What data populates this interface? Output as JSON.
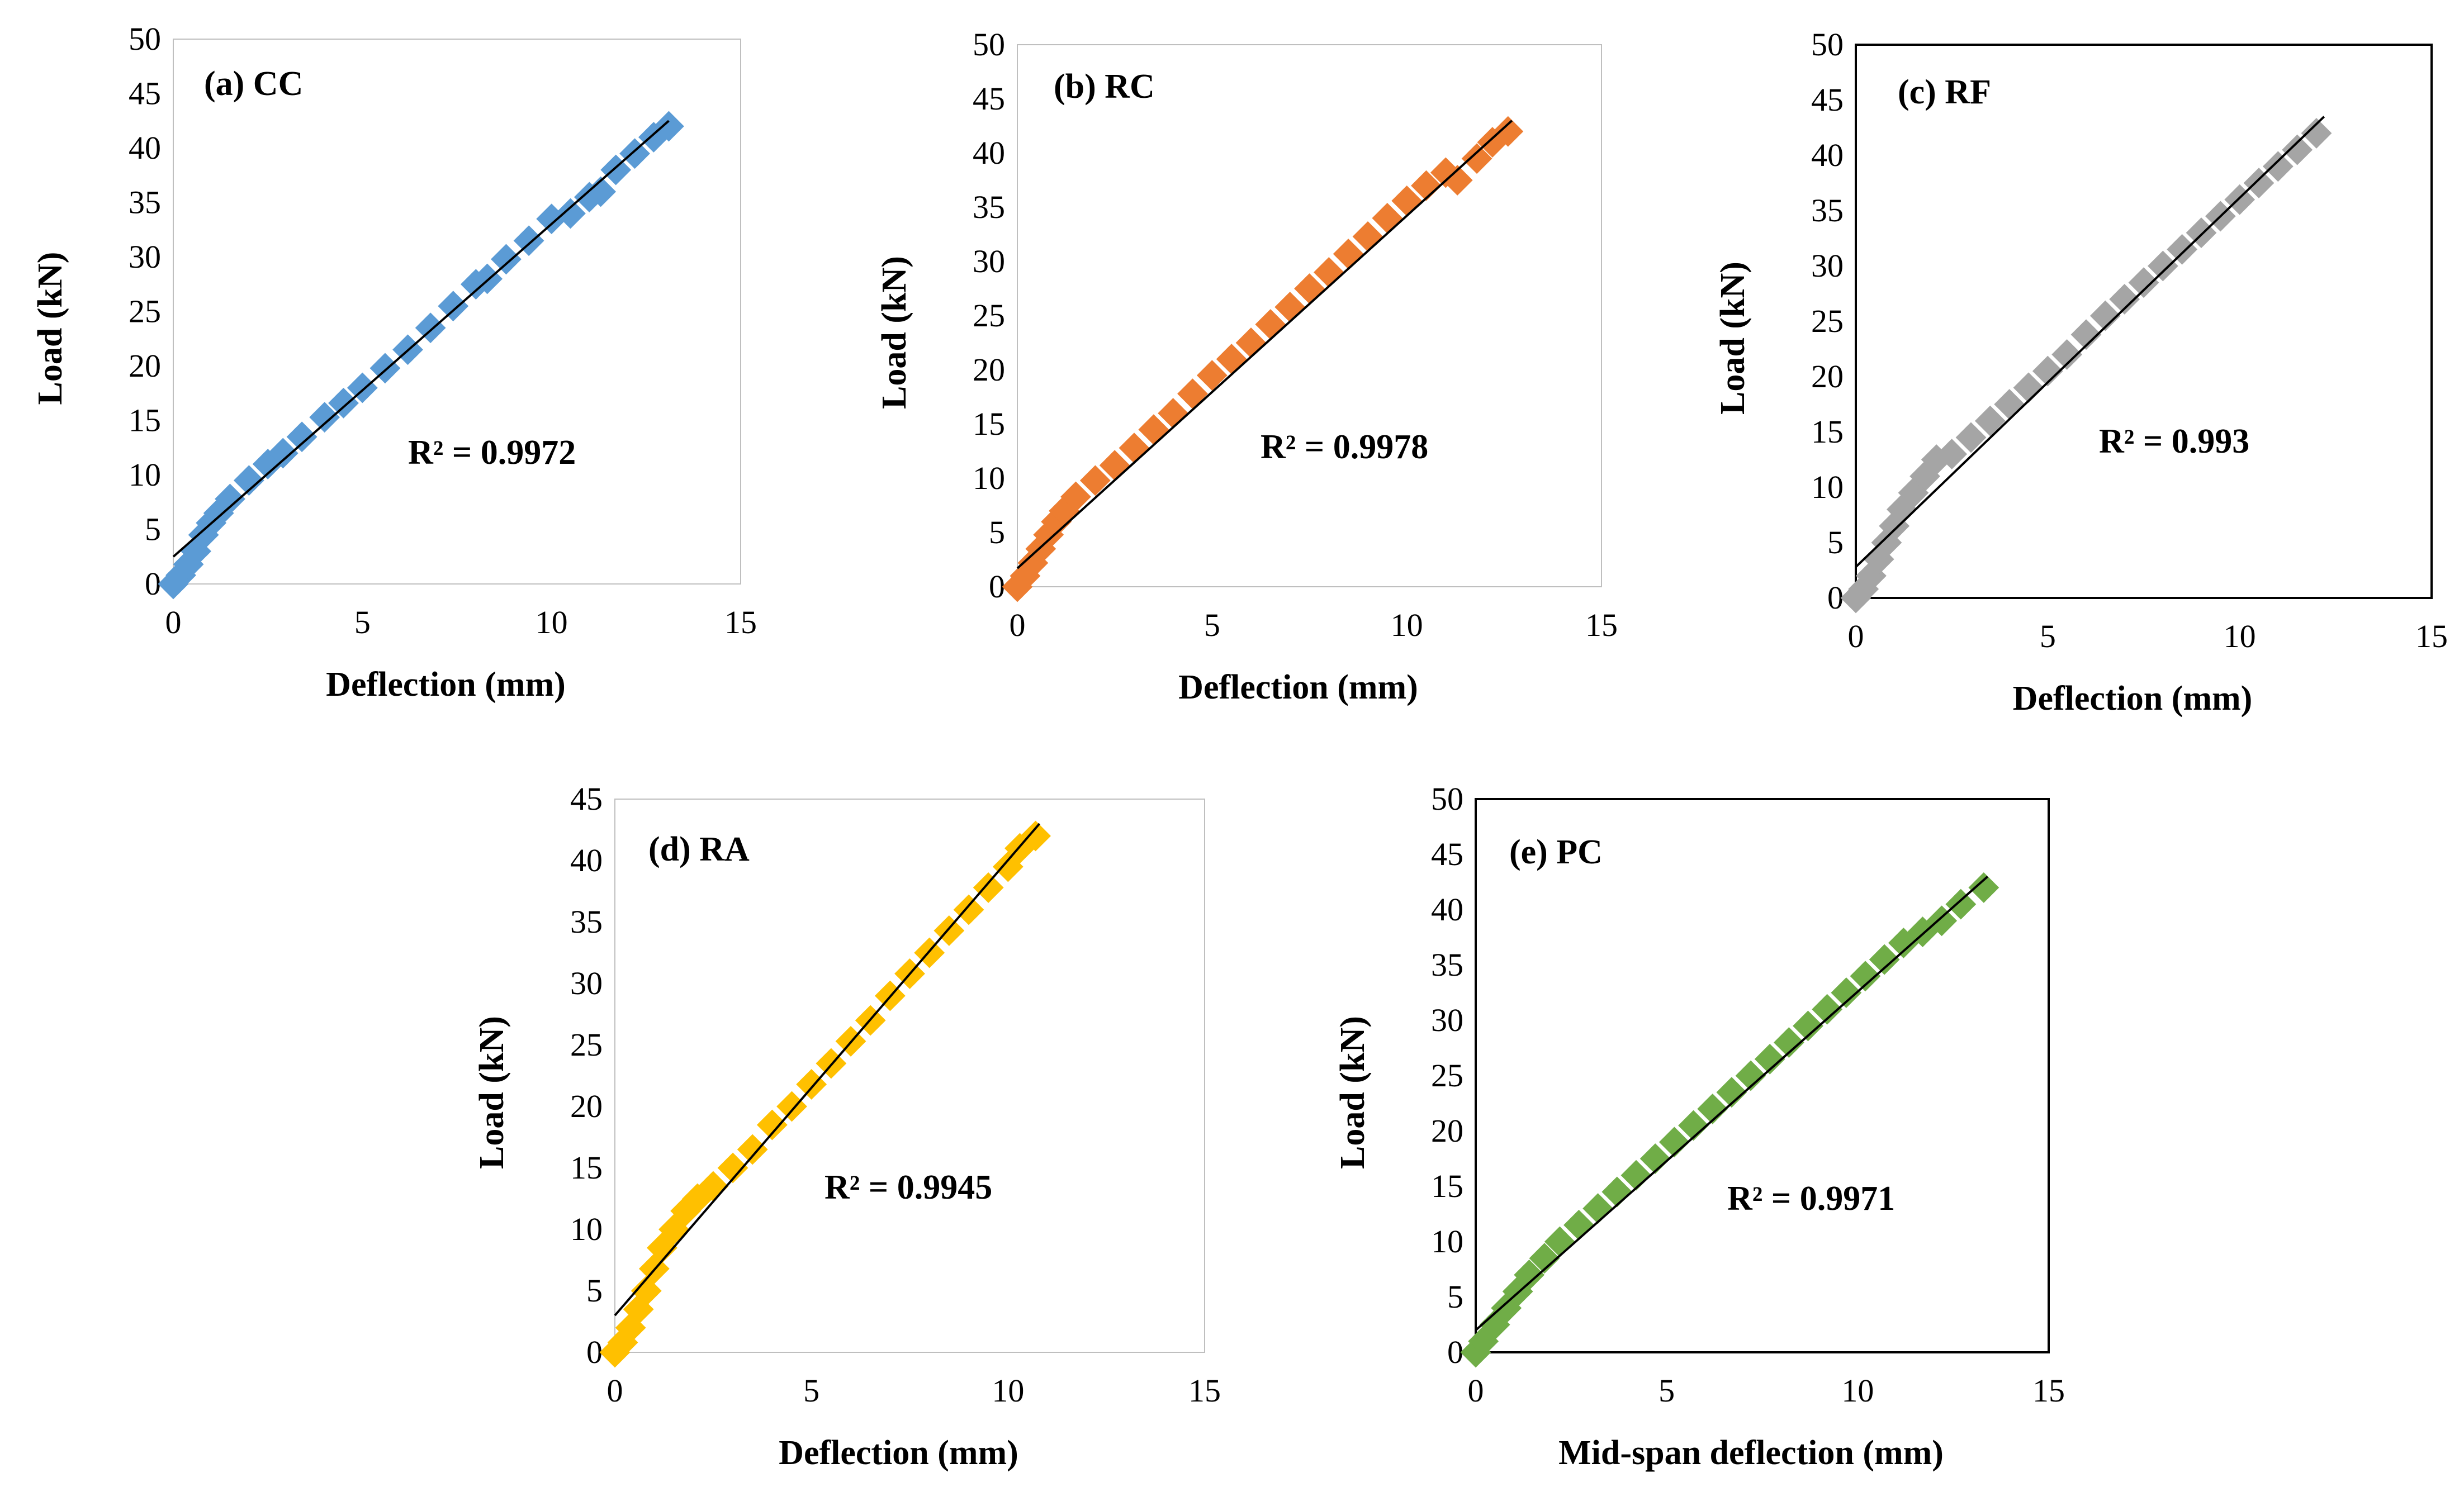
{
  "chart_data": [
    {
      "type": "scatter",
      "panel_label": "(a) CC",
      "xlabel": "Deflection (mm)",
      "ylabel": "Load (kN)",
      "xlim": [
        0,
        15
      ],
      "ylim": [
        0,
        50
      ],
      "xticks": [
        0,
        5,
        10,
        15
      ],
      "yticks": [
        0,
        5,
        10,
        15,
        20,
        25,
        30,
        35,
        40,
        45,
        50
      ],
      "r2_label": "R² = 0.9972",
      "color": "#5b9bd5",
      "trendline": {
        "x": [
          0,
          13.1
        ],
        "y": [
          2.5,
          42.5
        ]
      },
      "series": [
        {
          "name": "CC",
          "x": [
            0,
            0.2,
            0.4,
            0.6,
            0.8,
            1.0,
            1.2,
            1.5,
            2.0,
            2.5,
            2.9,
            3.4,
            4.0,
            4.5,
            5.0,
            5.6,
            6.2,
            6.8,
            7.4,
            8.0,
            8.3,
            8.8,
            9.4,
            10.0,
            10.5,
            11.0,
            11.3,
            11.7,
            12.2,
            12.7,
            13.1
          ],
          "y": [
            0,
            0.8,
            1.8,
            3.0,
            4.5,
            5.6,
            6.5,
            7.8,
            9.5,
            11.0,
            12.0,
            13.5,
            15.3,
            16.6,
            18.0,
            19.8,
            21.5,
            23.5,
            25.5,
            27.5,
            28.0,
            29.8,
            31.5,
            33.5,
            34.0,
            35.5,
            36.0,
            38.0,
            39.5,
            41.0,
            42.0
          ]
        }
      ]
    },
    {
      "type": "scatter",
      "panel_label": "(b) RC",
      "xlabel": "Deflection (mm)",
      "ylabel": "Load (kN)",
      "xlim": [
        0,
        15
      ],
      "ylim": [
        0,
        50
      ],
      "xticks": [
        0,
        5,
        10,
        15
      ],
      "yticks": [
        0,
        5,
        10,
        15,
        20,
        25,
        30,
        35,
        40,
        45,
        50
      ],
      "r2_label": "R² = 0.9978",
      "color": "#ed7d31",
      "trendline": {
        "x": [
          0,
          12.7
        ],
        "y": [
          1.7,
          43.0
        ]
      },
      "series": [
        {
          "name": "RC",
          "x": [
            0,
            0.2,
            0.4,
            0.6,
            0.8,
            1.0,
            1.2,
            1.5,
            2.0,
            2.5,
            3.0,
            3.5,
            4.0,
            4.5,
            5.0,
            5.5,
            6.0,
            6.5,
            7.0,
            7.5,
            8.0,
            8.5,
            9.0,
            9.5,
            10.0,
            10.5,
            11.0,
            11.3,
            11.8,
            12.2,
            12.6
          ],
          "y": [
            0,
            1.0,
            2.2,
            3.5,
            4.8,
            6.0,
            7.0,
            8.3,
            9.8,
            11.2,
            12.8,
            14.5,
            16.0,
            17.8,
            19.5,
            21.0,
            22.5,
            24.2,
            25.8,
            27.5,
            29.0,
            30.7,
            32.3,
            34.0,
            35.6,
            37.0,
            38.2,
            37.5,
            39.5,
            41.0,
            42.0
          ]
        }
      ]
    },
    {
      "type": "scatter",
      "panel_label": "(c) RF",
      "xlabel": "Deflection (mm)",
      "ylabel": "Load (kN)",
      "xlim": [
        0,
        15
      ],
      "ylim": [
        0,
        50
      ],
      "xticks": [
        0,
        5,
        10,
        15
      ],
      "yticks": [
        0,
        5,
        10,
        15,
        20,
        25,
        30,
        35,
        40,
        45,
        50
      ],
      "r2_label": "R² = 0.993",
      "color": "#a5a5a5",
      "trendline": {
        "x": [
          0,
          12.2
        ],
        "y": [
          2.8,
          43.5
        ]
      },
      "series": [
        {
          "name": "RF",
          "x": [
            0,
            0.2,
            0.4,
            0.6,
            0.8,
            1.0,
            1.2,
            1.5,
            1.8,
            2.1,
            2.5,
            3.0,
            3.5,
            4.0,
            4.5,
            5.0,
            5.5,
            6.0,
            6.5,
            7.0,
            7.5,
            8.0,
            8.5,
            9.0,
            9.5,
            10.0,
            10.5,
            11.0,
            11.5,
            12.0
          ],
          "y": [
            0,
            0.8,
            2.0,
            3.5,
            5.0,
            6.5,
            8.0,
            9.5,
            11.0,
            12.5,
            13.0,
            14.5,
            16.0,
            17.5,
            19.0,
            20.5,
            22.0,
            23.8,
            25.5,
            27.0,
            28.5,
            30.0,
            31.5,
            33.0,
            34.5,
            36.0,
            37.5,
            39.0,
            40.5,
            42.0
          ]
        }
      ]
    },
    {
      "type": "scatter",
      "panel_label": "(d) RA",
      "xlabel": "Deflection (mm)",
      "ylabel": "Load (kN)",
      "xlim": [
        0,
        15
      ],
      "ylim": [
        0,
        45
      ],
      "xticks": [
        0,
        5,
        10,
        15
      ],
      "yticks": [
        0,
        5,
        10,
        15,
        20,
        25,
        30,
        35,
        40,
        45
      ],
      "r2_label": "R² = 0.9945",
      "color": "#ffc000",
      "trendline": {
        "x": [
          0,
          10.8
        ],
        "y": [
          3.0,
          43.0
        ]
      },
      "series": [
        {
          "name": "RA",
          "x": [
            0,
            0.2,
            0.4,
            0.6,
            0.8,
            1.0,
            1.2,
            1.5,
            1.8,
            2.1,
            2.5,
            3.0,
            3.5,
            4.0,
            4.5,
            5.0,
            5.5,
            6.0,
            6.5,
            7.0,
            7.5,
            8.0,
            8.5,
            9.0,
            9.5,
            10.0,
            10.3,
            10.7
          ],
          "y": [
            0,
            0.8,
            2.0,
            3.5,
            5.0,
            6.8,
            8.5,
            10.0,
            11.5,
            12.5,
            13.5,
            15.0,
            16.5,
            18.5,
            20.0,
            21.8,
            23.5,
            25.3,
            27.0,
            29.0,
            30.8,
            32.5,
            34.3,
            36.0,
            37.8,
            39.5,
            41.0,
            42.0
          ]
        }
      ]
    },
    {
      "type": "scatter",
      "panel_label": "(e) PC",
      "xlabel": "Mid-span deflection (mm)",
      "ylabel": "Load (kN)",
      "xlim": [
        0,
        15
      ],
      "ylim": [
        0,
        50
      ],
      "xticks": [
        0,
        5,
        10,
        15
      ],
      "yticks": [
        0,
        5,
        10,
        15,
        20,
        25,
        30,
        35,
        40,
        45,
        50
      ],
      "r2_label": "R² = 0.9971",
      "color": "#70ad47",
      "trendline": {
        "x": [
          0,
          13.4
        ],
        "y": [
          2.0,
          43.0
        ]
      },
      "series": [
        {
          "name": "PC",
          "x": [
            0,
            0.2,
            0.5,
            0.8,
            1.1,
            1.4,
            1.8,
            2.2,
            2.7,
            3.2,
            3.7,
            4.2,
            4.7,
            5.2,
            5.7,
            6.2,
            6.7,
            7.2,
            7.7,
            8.2,
            8.7,
            9.2,
            9.7,
            10.2,
            10.7,
            11.2,
            11.7,
            12.2,
            12.7,
            13.3
          ],
          "y": [
            0,
            1.0,
            2.5,
            4.0,
            5.5,
            7.0,
            8.5,
            10.0,
            11.5,
            13.0,
            14.5,
            16.0,
            17.5,
            19.0,
            20.5,
            22.0,
            23.5,
            25.0,
            26.5,
            28.0,
            29.5,
            31.0,
            32.5,
            34.0,
            35.5,
            37.0,
            38.0,
            39.0,
            40.5,
            42.0
          ]
        }
      ]
    }
  ]
}
